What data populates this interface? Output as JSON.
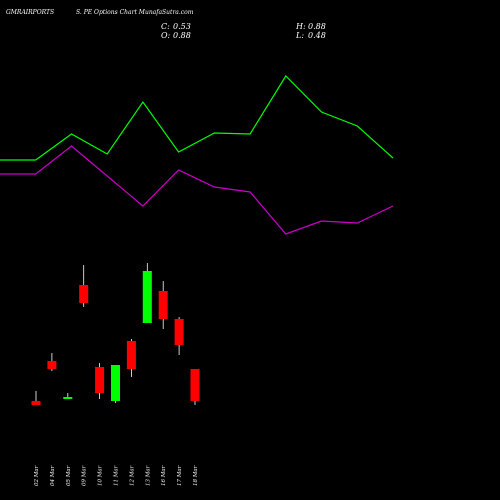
{
  "header": {
    "symbol": "GMRAIRPORTS",
    "subtitle": "S. PE Options Chart MunafaSutra.com",
    "close_label": "C:",
    "close_value": "0.53",
    "open_label": "O:",
    "open_value": "0.88",
    "high_label": "H:",
    "high_value": "0.88",
    "low_label": "L:",
    "low_value": "0.48"
  },
  "colors": {
    "background": "#000000",
    "up": "#00ff00",
    "down": "#ff0000",
    "line1": "#00ff00",
    "line2": "#cc00cc",
    "wick": "#ffffff"
  },
  "chart_data": [
    {
      "type": "line",
      "x": [
        "",
        "",
        "",
        "",
        "",
        "",
        "",
        "",
        "",
        "",
        "",
        ""
      ],
      "series": [
        {
          "values": [
            160,
            160,
            134,
            154,
            102,
            152,
            133,
            134,
            76,
            112,
            126,
            158
          ]
        },
        {
          "values": [
            174,
            174,
            146,
            176,
            206,
            170,
            187,
            192,
            234,
            221,
            223,
            206
          ]
        }
      ],
      "ylim": [
        60,
        250
      ]
    },
    {
      "type": "candlestick",
      "categories": [
        "02 Mar",
        "04 Mar",
        "05 Mar",
        "09 Mar",
        "10 Mar",
        "11 Mar",
        "12 Mar",
        "13 Mar",
        "16 Mar",
        "17 Mar",
        "18 Mar"
      ],
      "candles": [
        {
          "open": 0.37,
          "high": 0.42,
          "low": 0.35,
          "close": 0.35
        },
        {
          "open": 0.57,
          "high": 0.61,
          "low": 0.52,
          "close": 0.53
        },
        {
          "open": 0.39,
          "high": 0.41,
          "low": 0.38,
          "close": 0.39
        },
        {
          "open": 0.95,
          "high": 1.05,
          "low": 0.84,
          "close": 0.86
        },
        {
          "open": 0.54,
          "high": 0.56,
          "low": 0.38,
          "close": 0.41
        },
        {
          "open": 0.37,
          "high": 0.55,
          "low": 0.36,
          "close": 0.55
        },
        {
          "open": 0.67,
          "high": 0.68,
          "low": 0.49,
          "close": 0.53
        },
        {
          "open": 0.76,
          "high": 1.06,
          "low": 0.76,
          "close": 1.02
        },
        {
          "open": 0.92,
          "high": 0.97,
          "low": 0.73,
          "close": 0.78
        },
        {
          "open": 0.78,
          "high": 0.79,
          "low": 0.6,
          "close": 0.65
        },
        {
          "open": 0.53,
          "high": 0.53,
          "low": 0.35,
          "close": 0.37
        }
      ],
      "ylim": [
        0.1,
        1.1
      ]
    }
  ]
}
